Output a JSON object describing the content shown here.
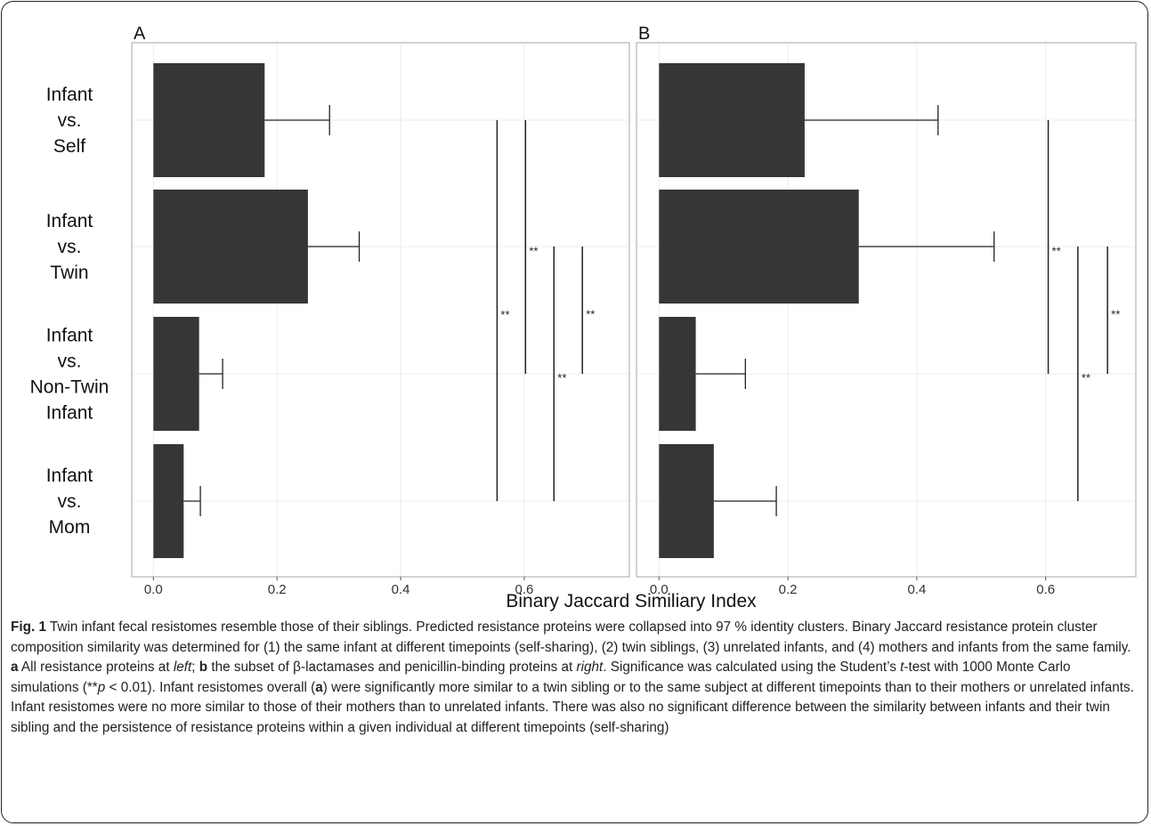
{
  "chart_data": [
    {
      "type": "bar",
      "orientation": "horizontal",
      "panel": "A",
      "categories": [
        "Infant vs. Self",
        "Infant vs. Twin",
        "Infant vs. Non-Twin Infant",
        "Infant vs. Mom"
      ],
      "category_lines": [
        [
          "Infant",
          "vs.",
          "Self"
        ],
        [
          "Infant",
          "vs.",
          "Twin"
        ],
        [
          "Infant",
          "vs.",
          "Non-Twin",
          "Infant"
        ],
        [
          "Infant",
          "vs.",
          "Mom"
        ]
      ],
      "values": [
        0.18,
        0.25,
        0.074,
        0.049
      ],
      "error_upper": [
        0.285,
        0.333,
        0.112,
        0.076
      ],
      "xlim": [
        -0.035,
        0.77
      ],
      "xticks": [
        0.0,
        0.2,
        0.4,
        0.6
      ],
      "xtick_labels": [
        "0.0",
        "0.2",
        "0.4",
        "0.6"
      ],
      "grid": true,
      "significance": [
        {
          "x": 0.556,
          "from": "Infant vs. Self",
          "to": "Infant vs. Mom",
          "label": "**"
        },
        {
          "x": 0.602,
          "from": "Infant vs. Self",
          "to": "Infant vs. Non-Twin Infant",
          "label": "**"
        },
        {
          "x": 0.648,
          "from": "Infant vs. Twin",
          "to": "Infant vs. Mom",
          "label": "**"
        },
        {
          "x": 0.694,
          "from": "Infant vs. Twin",
          "to": "Infant vs. Non-Twin Infant",
          "label": "**"
        }
      ]
    },
    {
      "type": "bar",
      "orientation": "horizontal",
      "panel": "B",
      "categories": [
        "Infant vs. Self",
        "Infant vs. Twin",
        "Infant vs. Non-Twin Infant",
        "Infant vs. Mom"
      ],
      "values": [
        0.226,
        0.31,
        0.057,
        0.085
      ],
      "error_upper": [
        0.433,
        0.52,
        0.134,
        0.182
      ],
      "xlim": [
        -0.035,
        0.74
      ],
      "xticks": [
        0.0,
        0.2,
        0.4,
        0.6
      ],
      "xtick_labels": [
        "0.0",
        "0.2",
        "0.4",
        "0.6"
      ],
      "grid": true,
      "significance": [
        {
          "x": 0.604,
          "from": "Infant vs. Self",
          "to": "Infant vs. Non-Twin Infant",
          "label": "**"
        },
        {
          "x": 0.65,
          "from": "Infant vs. Twin",
          "to": "Infant vs. Mom",
          "label": "**"
        },
        {
          "x": 0.696,
          "from": "Infant vs. Twin",
          "to": "Infant vs. Non-Twin Infant",
          "label": "**"
        }
      ]
    }
  ],
  "xlabel": "Binary Jaccard Similiary Index",
  "caption": {
    "fig_label": "Fig. 1",
    "part1": " Twin infant fecal resistomes resemble those of their siblings. Predicted resistance proteins were collapsed into 97 % identity clusters. Binary Jaccard resistance protein cluster composition similarity was determined for (1) the same infant at different timepoints (self-sharing), (2) twin siblings, (3) unrelated infants, and (4) mothers and infants from the same family. ",
    "a_label": "a",
    "part2": " All resistance proteins at ",
    "left_word": "left",
    "part3": "; ",
    "b_label": "b",
    "part4": " the subset of β-lactamases and penicillin-binding proteins at ",
    "right_word": "right",
    "part5": ". Significance was calculated using the Student’s ",
    "t_word": "t",
    "part6": "-test with 1000 Monte Carlo simulations (**",
    "p_word": "p",
    "part7": " < 0.01). Infant resistomes overall (",
    "a_label2": "a",
    "part8": ") were significantly more similar to a twin sibling or to the same subject at different timepoints than to their mothers or unrelated infants. Infant resistomes were no more similar to those of their mothers than to unrelated infants. There was also no significant difference between the similarity between infants and their twin sibling and the persistence of resistance proteins within a given individual at different timepoints (self-sharing)"
  }
}
